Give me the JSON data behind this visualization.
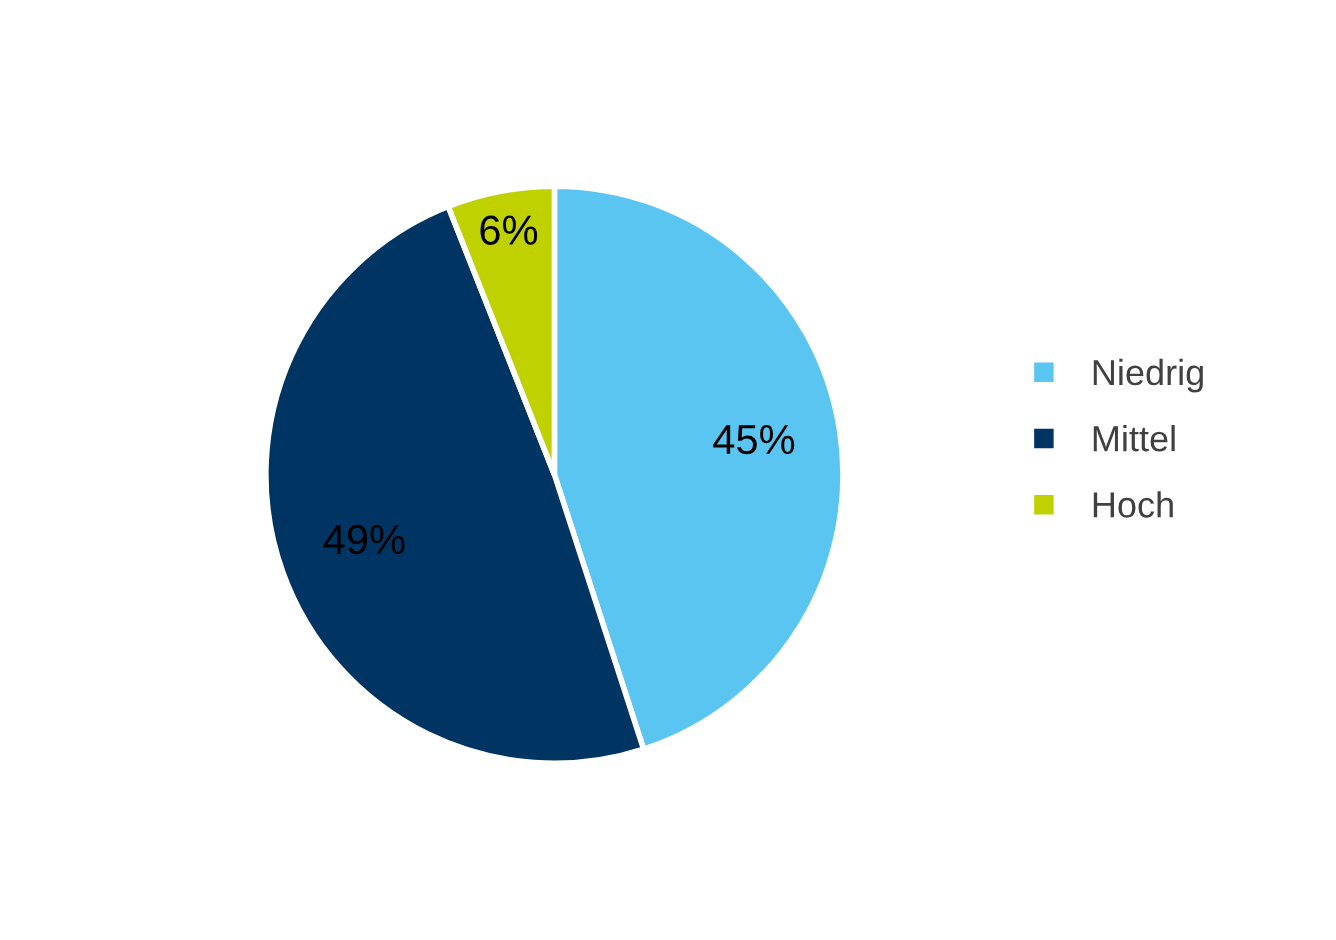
{
  "chart_data": {
    "type": "pie",
    "categories": [
      "Niedrig",
      "Mittel",
      "Hoch"
    ],
    "values": [
      45,
      49,
      6
    ],
    "colors": [
      "#5bc5f2",
      "#003462",
      "#c0d100"
    ],
    "value_labels": [
      "45%",
      "49%",
      "6%"
    ],
    "legend": "right"
  }
}
